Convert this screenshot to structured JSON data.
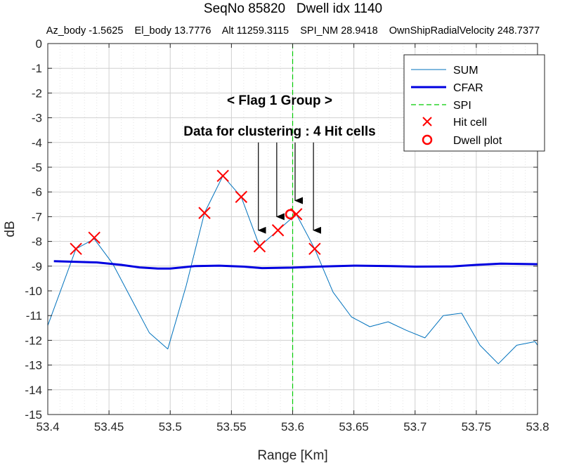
{
  "chart_data": {
    "type": "line",
    "title": "SeqNo 85820   Dwell idx 1140",
    "subtitle": "Az_body -1.5625    El_body 13.7776    Alt 11259.3115    SPI_NM 28.9418    OwnShipRadialVelocity 248.7377",
    "xlabel": "Range [Km]",
    "ylabel": "dB",
    "xlim": [
      53.4,
      53.8
    ],
    "ylim": [
      -15,
      0
    ],
    "xticks": [
      "53.4",
      "53.45",
      "53.5",
      "53.55",
      "53.6",
      "53.65",
      "53.7",
      "53.75",
      "53.8"
    ],
    "yticks": [
      "0",
      "-1",
      "-2",
      "-3",
      "-4",
      "-5",
      "-6",
      "-7",
      "-8",
      "-9",
      "-10",
      "-11",
      "-12",
      "-13",
      "-14",
      "-15"
    ],
    "grid": true,
    "legend_position": "top-right",
    "series": [
      {
        "name": "SUM",
        "style": "thin-line",
        "color": "#0072BD",
        "x": [
          53.4,
          53.423,
          53.438,
          53.453,
          53.468,
          53.483,
          53.498,
          53.513,
          53.528,
          53.543,
          53.558,
          53.573,
          53.588,
          53.603,
          53.618,
          53.633,
          53.648,
          53.663,
          53.678,
          53.693,
          53.708,
          53.723,
          53.738,
          53.753,
          53.768,
          53.783,
          53.798,
          53.8
        ],
        "y": [
          -11.4,
          -8.3,
          -7.9,
          -8.9,
          -10.3,
          -11.7,
          -12.35,
          -9.8,
          -6.85,
          -5.35,
          -6.2,
          -8.2,
          -7.55,
          -6.9,
          -8.3,
          -10.05,
          -11.05,
          -11.45,
          -11.25,
          -11.6,
          -11.9,
          -11.0,
          -10.9,
          -12.2,
          -12.95,
          -12.2,
          -12.05,
          -12.2
        ]
      },
      {
        "name": "CFAR",
        "style": "thick-line",
        "color": "#0000E0",
        "x": [
          53.405,
          53.44,
          53.46,
          53.475,
          53.49,
          53.5,
          53.52,
          53.54,
          53.56,
          53.575,
          53.6,
          53.62,
          53.65,
          53.68,
          53.7,
          53.73,
          53.75,
          53.77,
          53.8
        ],
        "y": [
          -8.8,
          -8.85,
          -8.95,
          -9.05,
          -9.1,
          -9.1,
          -9.0,
          -8.98,
          -9.02,
          -9.08,
          -9.06,
          -9.02,
          -8.98,
          -9.0,
          -9.02,
          -9.01,
          -8.95,
          -8.9,
          -8.92
        ]
      }
    ],
    "spi": {
      "name": "SPI",
      "x": 53.6,
      "color": "#00CC00"
    },
    "hit_cells": {
      "name": "Hit cell",
      "color": "#FF0000",
      "x": [
        53.423,
        53.438,
        53.528,
        53.543,
        53.558,
        53.573,
        53.588,
        53.603,
        53.618
      ],
      "y": [
        -8.3,
        -7.85,
        -6.85,
        -5.35,
        -6.2,
        -8.2,
        -7.55,
        -6.9,
        -8.3
      ]
    },
    "dwell_plot": {
      "name": "Dwell plot",
      "color": "#FF0000",
      "x": 53.598,
      "y": -6.9
    },
    "annotations": {
      "group": "< Flag 1 Group >",
      "clustering": "Data for clustering : 4 Hit cells",
      "arrows": [
        {
          "from_x": 53.572,
          "from_y": -4.0,
          "to_x": 53.572,
          "to_y": -7.55
        },
        {
          "from_x": 53.587,
          "from_y": -4.0,
          "to_x": 53.587,
          "to_y": -7.0
        },
        {
          "from_x": 53.602,
          "from_y": -4.0,
          "to_x": 53.602,
          "to_y": -6.35
        },
        {
          "from_x": 53.617,
          "from_y": -4.0,
          "to_x": 53.617,
          "to_y": -7.55
        }
      ]
    }
  }
}
